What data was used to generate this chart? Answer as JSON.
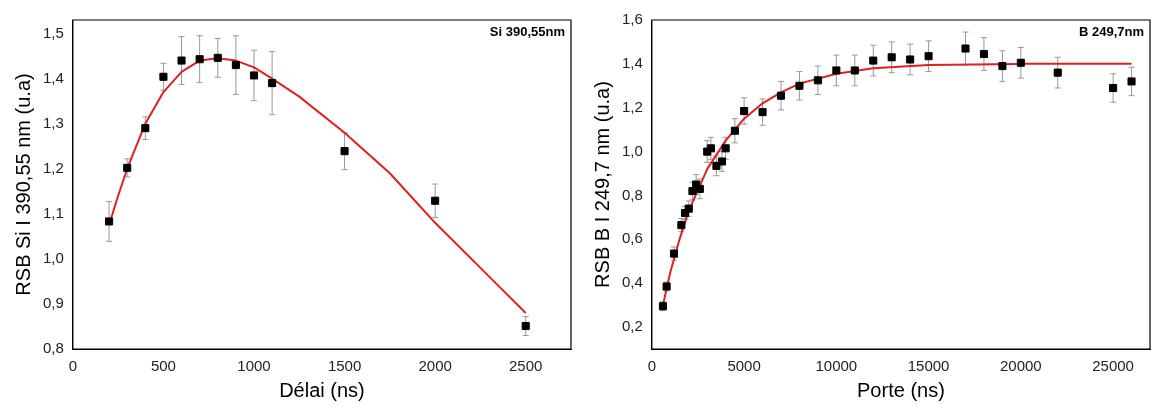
{
  "chart_data": [
    {
      "type": "scatter",
      "xlabel": "Délai (ns)",
      "ylabel": "RSB Si I 390,55 nm (u.a)",
      "annotations": [
        "Si 390,55nm"
      ],
      "marker": "square",
      "xlim": [
        0,
        2750
      ],
      "ylim": [
        0.8,
        1.53
      ],
      "xticks": [
        0,
        500,
        1000,
        1500,
        2000,
        2500
      ],
      "yticks": [
        {
          "value": 0.8,
          "label": "0,8"
        },
        {
          "value": 0.9,
          "label": "0,9"
        },
        {
          "value": 1.0,
          "label": "1,0"
        },
        {
          "value": 1.1,
          "label": "1,1"
        },
        {
          "value": 1.2,
          "label": "1,2"
        },
        {
          "value": 1.3,
          "label": "1,3"
        },
        {
          "value": 1.4,
          "label": "1,4"
        },
        {
          "value": 1.5,
          "label": "1,5"
        }
      ],
      "series": [
        {
          "type": "scatter",
          "color": "#000000",
          "x": [
            200,
            300,
            400,
            500,
            600,
            700,
            800,
            900,
            1000,
            1100,
            1500,
            2000,
            2500
          ],
          "values": [
            1.083,
            1.202,
            1.29,
            1.404,
            1.44,
            1.443,
            1.446,
            1.43,
            1.407,
            1.39,
            1.239,
            1.129,
            0.851
          ],
          "errors": [
            0.044,
            0.02,
            0.025,
            0.03,
            0.053,
            0.052,
            0.043,
            0.065,
            0.056,
            0.07,
            0.041,
            0.037,
            0.021
          ]
        },
        {
          "type": "line",
          "color": "#e02020",
          "marker": "none",
          "x": [
            200,
            250,
            300,
            400,
            500,
            600,
            700,
            800,
            900,
            1000,
            1100,
            1250,
            1500,
            1750,
            2000,
            2250,
            2500
          ],
          "values": [
            1.075,
            1.14,
            1.2,
            1.3,
            1.37,
            1.415,
            1.44,
            1.445,
            1.44,
            1.425,
            1.4,
            1.36,
            1.28,
            1.19,
            1.08,
            0.98,
            0.88
          ]
        }
      ]
    },
    {
      "type": "scatter",
      "xlabel": "Porte (ns)",
      "ylabel": "RSB B I 249,7 nm (u.a)",
      "annotations": [
        "B 249,7nm"
      ],
      "marker": "square",
      "xlim": [
        0,
        27000
      ],
      "ylim": [
        0.1,
        1.6
      ],
      "xticks": [
        0,
        5000,
        10000,
        15000,
        20000,
        25000
      ],
      "yticks": [
        {
          "value": 0.2,
          "label": "0,2"
        },
        {
          "value": 0.4,
          "label": "0,4"
        },
        {
          "value": 0.6,
          "label": "0,6"
        },
        {
          "value": 0.8,
          "label": "0,8"
        },
        {
          "value": 1.0,
          "label": "1,0"
        },
        {
          "value": 1.2,
          "label": "1,2"
        },
        {
          "value": 1.4,
          "label": "1,4"
        },
        {
          "value": 1.6,
          "label": "1,6"
        }
      ],
      "series": [
        {
          "type": "scatter",
          "color": "#000000",
          "x": [
            600,
            800,
            1200,
            1600,
            1800,
            2000,
            2200,
            2400,
            2600,
            3000,
            3200,
            3500,
            3800,
            4000,
            4500,
            5000,
            6000,
            7000,
            8000,
            9000,
            10000,
            11000,
            12000,
            13000,
            14000,
            15000,
            17000,
            18000,
            19000,
            20000,
            22000,
            25000,
            26000
          ],
          "values": [
            0.295,
            0.385,
            0.535,
            0.665,
            0.72,
            0.74,
            0.82,
            0.85,
            0.83,
            1.0,
            1.015,
            0.935,
            0.955,
            1.015,
            1.095,
            1.185,
            1.18,
            1.255,
            1.3,
            1.325,
            1.37,
            1.37,
            1.415,
            1.43,
            1.42,
            1.435,
            1.47,
            1.445,
            1.39,
            1.405,
            1.36,
            1.29,
            1.32
          ],
          "errors": [
            0.02,
            0.02,
            0.03,
            0.03,
            0.03,
            0.035,
            0.04,
            0.045,
            0.045,
            0.05,
            0.05,
            0.045,
            0.045,
            0.05,
            0.055,
            0.06,
            0.06,
            0.065,
            0.065,
            0.065,
            0.07,
            0.07,
            0.07,
            0.07,
            0.07,
            0.07,
            0.075,
            0.075,
            0.07,
            0.07,
            0.07,
            0.065,
            0.065
          ]
        },
        {
          "type": "line",
          "color": "#e02020",
          "marker": "none",
          "x": [
            600,
            1000,
            1500,
            2000,
            3000,
            4000,
            5000,
            6000,
            7000,
            8000,
            10000,
            12000,
            15000,
            20000,
            26000
          ],
          "values": [
            0.3,
            0.45,
            0.6,
            0.73,
            0.92,
            1.05,
            1.15,
            1.22,
            1.27,
            1.31,
            1.355,
            1.38,
            1.395,
            1.4,
            1.4
          ]
        }
      ]
    }
  ]
}
